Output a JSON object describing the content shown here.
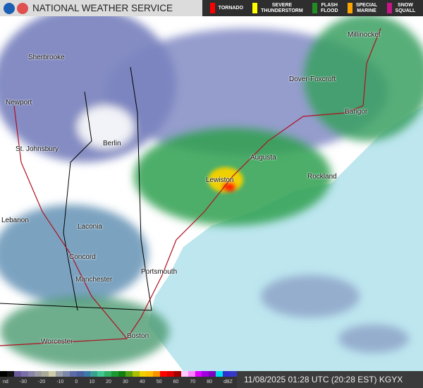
{
  "header": {
    "title": "NATIONAL WEATHER SERVICE",
    "logos": [
      "noaa-logo",
      "nws-logo"
    ],
    "warnings": [
      {
        "label": "TORNADO",
        "color": "#ff0000"
      },
      {
        "label": "SEVERE\nTHUNDERSTORM",
        "color": "#ffff00"
      },
      {
        "label": "FLASH\nFLOOD",
        "color": "#228b22"
      },
      {
        "label": "SPECIAL\nMARINE",
        "color": "#ffa500"
      },
      {
        "label": "SNOW\nSQUALL",
        "color": "#c71585"
      }
    ]
  },
  "map": {
    "ocean_color": "#bde6ef",
    "land_color": "#ffffff",
    "cities": [
      "Millinocket",
      "Sherbrooke",
      "Dover-Foxcroft",
      "Newport",
      "Bangor",
      "St. Johnsbury",
      "Berlin",
      "Augusta",
      "Rockland",
      "Lewiston",
      "Lebanon",
      "Laconia",
      "Concord",
      "Portsmouth",
      "Manchester",
      "Boston",
      "Worcester"
    ]
  },
  "legend": {
    "ticks": [
      "nd",
      "-30",
      "-20",
      "-10",
      "0",
      "10",
      "20",
      "30",
      "40",
      "50",
      "60",
      "70",
      "80",
      "dBZ"
    ],
    "colors": [
      "#000000",
      "#111111",
      "#6a5a9a",
      "#7a6ea8",
      "#8a84a8",
      "#9a9aa0",
      "#aaaa99",
      "#cfcca8",
      "#9aa0a8",
      "#7e86aa",
      "#5c6aa6",
      "#4a60a0",
      "#3a7aa8",
      "#3aa090",
      "#40c890",
      "#30b060",
      "#1a9a30",
      "#108010",
      "#5aa010",
      "#a8c000",
      "#f0d000",
      "#ffc000",
      "#ff9000",
      "#ff0000",
      "#e00000",
      "#a00000",
      "#ffc8ff",
      "#ff80ff",
      "#e000ff",
      "#a000e0",
      "#8000c0",
      "#00e0e8",
      "#3030d0",
      "#3838c8"
    ]
  },
  "timestamp": "11/08/2025 01:28 UTC (20:28 EST) KGYX"
}
